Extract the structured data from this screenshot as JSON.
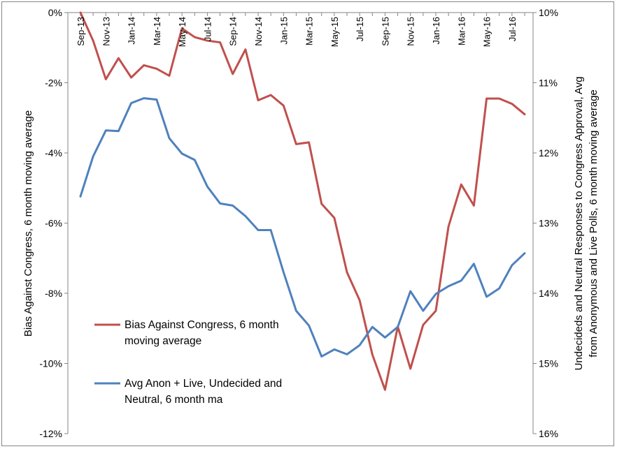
{
  "chart_data": {
    "type": "line",
    "x": [
      "Sep-13",
      "Oct-13",
      "Nov-13",
      "Dec-13",
      "Jan-14",
      "Feb-14",
      "Mar-14",
      "Apr-14",
      "May-14",
      "Jun-14",
      "Jul-14",
      "Aug-14",
      "Sep-14",
      "Oct-14",
      "Nov-14",
      "Dec-14",
      "Jan-15",
      "Feb-15",
      "Mar-15",
      "Apr-15",
      "May-15",
      "Jun-15",
      "Jul-15",
      "Aug-15",
      "Sep-15",
      "Oct-15",
      "Nov-15",
      "Dec-15",
      "Jan-16",
      "Feb-16",
      "Mar-16",
      "Apr-16",
      "May-16",
      "Jun-16",
      "Jul-16",
      "Aug-16"
    ],
    "x_tick_labels": [
      "Sep-13",
      "Nov-13",
      "Jan-14",
      "Mar-14",
      "May-14",
      "Jul-14",
      "Sep-14",
      "Nov-14",
      "Jan-15",
      "Mar-15",
      "May-15",
      "Jul-15",
      "Sep-15",
      "Nov-15",
      "Jan-16",
      "Mar-16",
      "May-16",
      "Jul-16"
    ],
    "ylabel_left": "Bias Against Congress, 6 month moving average",
    "ylabel_right": "Undecideds and Neutral Responses to Congress Approval, Avg from Anonymous and Live Polls, 6 month moving average",
    "y_left_ticks": [
      "0%",
      "-2%",
      "-4%",
      "-6%",
      "-8%",
      "-10%",
      "-12%"
    ],
    "y_right_ticks": [
      "10%",
      "11%",
      "12%",
      "13%",
      "14%",
      "15%",
      "16%"
    ],
    "ylim_left": [
      -12,
      0
    ],
    "ylim_right": [
      10,
      16
    ],
    "right_axis_inverted": true,
    "legend_position": "bottom-left",
    "grid": false,
    "series": [
      {
        "name": "Bias Against Congress, 6 month moving average",
        "axis": "left",
        "color": "#c0504d",
        "values": [
          0.0,
          -0.8,
          -1.9,
          -1.3,
          -1.85,
          -1.5,
          -1.6,
          -1.8,
          -0.45,
          -0.7,
          -0.8,
          -0.85,
          -1.75,
          -1.05,
          -2.5,
          -2.35,
          -2.65,
          -3.75,
          -3.7,
          -5.45,
          -5.85,
          -7.4,
          -8.2,
          -9.75,
          -10.75,
          -8.95,
          -10.15,
          -8.9,
          -8.5,
          -6.1,
          -4.9,
          -5.5,
          -2.45,
          -2.45,
          -2.6,
          -2.9
        ]
      },
      {
        "name": "Avg Anon + Live, Undecided and Neutral, 6 month ma",
        "axis": "right",
        "color": "#4f81bd",
        "values": [
          12.62,
          12.05,
          11.68,
          11.69,
          11.29,
          11.22,
          11.24,
          11.79,
          12.01,
          12.1,
          12.48,
          12.72,
          12.75,
          12.9,
          13.1,
          13.1,
          13.7,
          14.25,
          14.46,
          14.9,
          14.8,
          14.87,
          14.74,
          14.48,
          14.63,
          14.48,
          13.97,
          14.25,
          14.01,
          13.9,
          13.82,
          13.58,
          14.05,
          13.93,
          13.6,
          13.43
        ]
      }
    ]
  }
}
